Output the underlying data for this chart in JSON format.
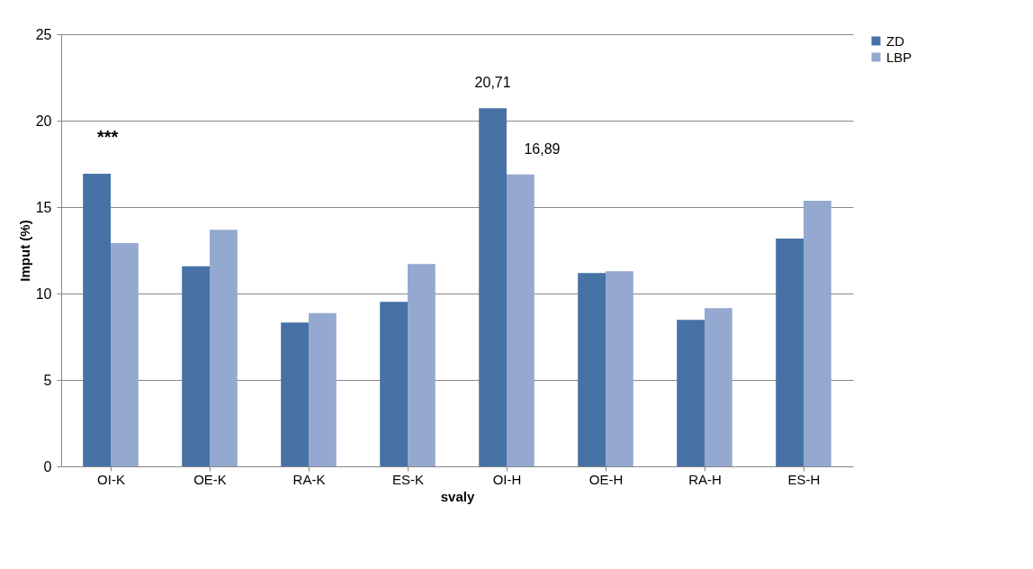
{
  "chart_data": {
    "type": "bar",
    "xlabel": "svaly",
    "ylabel": "Imput (%)",
    "categories": [
      "OI-K",
      "OE-K",
      "RA-K",
      "ES-K",
      "OI-H",
      "OE-H",
      "RA-H",
      "ES-H"
    ],
    "series": [
      {
        "name": "ZD",
        "color": "#4672a6",
        "values": [
          16.93,
          11.57,
          8.32,
          9.52,
          20.71,
          11.18,
          8.48,
          13.18
        ],
        "value_labels": [
          null,
          null,
          null,
          null,
          "20,71",
          null,
          null,
          null
        ]
      },
      {
        "name": "LBP",
        "color": "#95a9d0",
        "values": [
          12.92,
          13.69,
          8.87,
          11.71,
          16.89,
          11.29,
          9.15,
          15.37
        ],
        "value_labels": [
          null,
          null,
          null,
          null,
          "16,89",
          null,
          null,
          null
        ]
      }
    ],
    "ylim": [
      0,
      25
    ],
    "yticks": [
      0,
      5,
      10,
      15,
      20,
      25
    ],
    "grid": "y",
    "legend": "right",
    "annotations": [
      "***"
    ]
  }
}
